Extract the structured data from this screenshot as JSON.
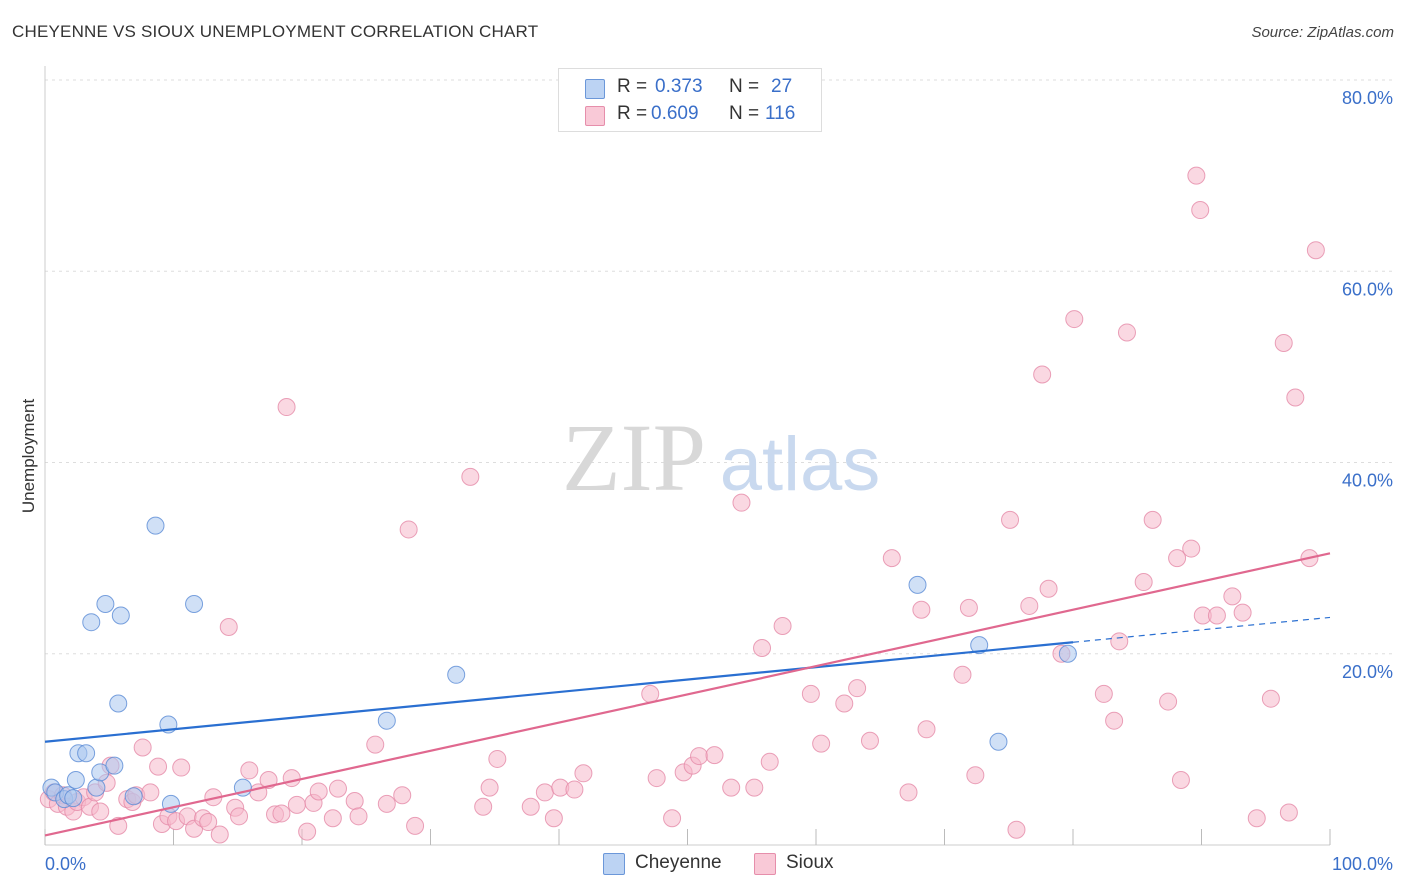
{
  "title": "CHEYENNE VS SIOUX UNEMPLOYMENT CORRELATION CHART",
  "source": "Source: ZipAtlas.com",
  "watermark": {
    "zip": "ZIP",
    "atlas": "atlas"
  },
  "legend": {
    "rows": [
      {
        "r_label": "R =",
        "r_value": "0.373",
        "n_label": "N =",
        "n_value": "27"
      },
      {
        "r_label": "R =",
        "r_value": "0.609",
        "n_label": "N =",
        "n_value": "116"
      }
    ]
  },
  "colors": {
    "cheyenne_fill": "#a9c6ee",
    "cheyenne_stroke": "#5a8bd6",
    "cheyenne_line": "#2a6fd1",
    "sioux_fill": "#f5b8cb",
    "sioux_stroke": "#e589a8",
    "sioux_line": "#e0688f",
    "tick_label": "#3a6fc9",
    "grid": "#dddddd"
  },
  "chart_data": {
    "type": "scatter",
    "title": "CHEYENNE VS SIOUX UNEMPLOYMENT CORRELATION CHART",
    "xlabel": "",
    "ylabel": "Unemployment",
    "xlim": [
      0,
      100
    ],
    "ylim": [
      0,
      80
    ],
    "x_tick_labels": [
      "0.0%",
      "100.0%"
    ],
    "y_ticks": [
      20,
      40,
      60,
      80
    ],
    "y_tick_labels": [
      "20.0%",
      "40.0%",
      "60.0%",
      "80.0%"
    ],
    "grid": true,
    "legend_position": "top-center",
    "series": [
      {
        "name": "Cheyenne",
        "r": 0.373,
        "n": 27,
        "trend": {
          "x": [
            0,
            80
          ],
          "y": [
            10.8,
            21.2
          ],
          "dashed_extension_to_x": 100,
          "dashed_end_y": 23.8
        },
        "points": [
          [
            0.5,
            6.0
          ],
          [
            0.8,
            5.5
          ],
          [
            1.5,
            4.8
          ],
          [
            1.8,
            5.2
          ],
          [
            2.2,
            4.9
          ],
          [
            2.4,
            6.8
          ],
          [
            2.6,
            9.6
          ],
          [
            3.2,
            9.6
          ],
          [
            3.6,
            23.3
          ],
          [
            4.0,
            6.0
          ],
          [
            4.3,
            7.6
          ],
          [
            4.7,
            25.2
          ],
          [
            5.4,
            8.3
          ],
          [
            5.7,
            14.8
          ],
          [
            5.9,
            24.0
          ],
          [
            6.9,
            5.1
          ],
          [
            8.6,
            33.4
          ],
          [
            9.6,
            12.6
          ],
          [
            9.8,
            4.3
          ],
          [
            11.6,
            25.2
          ],
          [
            15.4,
            6.0
          ],
          [
            26.6,
            13.0
          ],
          [
            32.0,
            17.8
          ],
          [
            67.9,
            27.2
          ],
          [
            72.7,
            20.9
          ],
          [
            74.2,
            10.8
          ],
          [
            79.6,
            20.0
          ]
        ]
      },
      {
        "name": "Sioux",
        "r": 0.609,
        "n": 116,
        "trend": {
          "x": [
            0,
            100
          ],
          "y": [
            1.0,
            30.5
          ]
        },
        "points": [
          [
            0.3,
            4.8
          ],
          [
            0.7,
            5.5
          ],
          [
            1.0,
            4.3
          ],
          [
            1.4,
            5.2
          ],
          [
            1.7,
            4.0
          ],
          [
            2.2,
            3.5
          ],
          [
            2.5,
            4.5
          ],
          [
            3.0,
            5.0
          ],
          [
            3.5,
            4.0
          ],
          [
            3.9,
            5.5
          ],
          [
            4.3,
            3.5
          ],
          [
            4.8,
            6.5
          ],
          [
            5.1,
            8.3
          ],
          [
            5.7,
            2.0
          ],
          [
            6.4,
            4.8
          ],
          [
            6.8,
            4.5
          ],
          [
            7.1,
            5.2
          ],
          [
            7.6,
            10.2
          ],
          [
            8.2,
            5.5
          ],
          [
            8.8,
            8.2
          ],
          [
            9.1,
            2.2
          ],
          [
            9.6,
            3.0
          ],
          [
            10.2,
            2.5
          ],
          [
            10.6,
            8.1
          ],
          [
            11.1,
            3.0
          ],
          [
            11.6,
            1.7
          ],
          [
            12.3,
            2.8
          ],
          [
            12.7,
            2.4
          ],
          [
            13.1,
            5.0
          ],
          [
            13.6,
            1.1
          ],
          [
            14.3,
            22.8
          ],
          [
            14.8,
            3.9
          ],
          [
            15.1,
            3.0
          ],
          [
            15.9,
            7.8
          ],
          [
            16.6,
            5.5
          ],
          [
            17.4,
            6.8
          ],
          [
            17.9,
            3.2
          ],
          [
            18.4,
            3.3
          ],
          [
            18.8,
            45.8
          ],
          [
            19.2,
            7.0
          ],
          [
            19.6,
            4.2
          ],
          [
            20.4,
            1.4
          ],
          [
            20.9,
            4.4
          ],
          [
            21.3,
            5.6
          ],
          [
            22.4,
            2.8
          ],
          [
            22.8,
            5.9
          ],
          [
            24.1,
            4.6
          ],
          [
            24.4,
            3.0
          ],
          [
            25.7,
            10.5
          ],
          [
            26.6,
            4.3
          ],
          [
            27.8,
            5.2
          ],
          [
            28.3,
            33.0
          ],
          [
            28.8,
            2.0
          ],
          [
            33.1,
            38.5
          ],
          [
            34.1,
            4.0
          ],
          [
            34.6,
            6.0
          ],
          [
            35.2,
            9.0
          ],
          [
            37.8,
            4.0
          ],
          [
            38.9,
            5.5
          ],
          [
            39.6,
            2.8
          ],
          [
            40.1,
            6.0
          ],
          [
            41.2,
            5.8
          ],
          [
            41.9,
            7.5
          ],
          [
            47.1,
            15.8
          ],
          [
            47.6,
            7.0
          ],
          [
            48.8,
            2.8
          ],
          [
            49.7,
            7.6
          ],
          [
            50.4,
            8.3
          ],
          [
            50.9,
            9.3
          ],
          [
            52.1,
            9.4
          ],
          [
            53.4,
            6.0
          ],
          [
            54.2,
            35.8
          ],
          [
            55.2,
            6.0
          ],
          [
            55.8,
            20.6
          ],
          [
            56.4,
            8.7
          ],
          [
            57.4,
            22.9
          ],
          [
            59.6,
            15.8
          ],
          [
            60.4,
            10.6
          ],
          [
            62.2,
            14.8
          ],
          [
            63.2,
            16.4
          ],
          [
            64.2,
            10.9
          ],
          [
            65.9,
            30.0
          ],
          [
            67.2,
            5.5
          ],
          [
            68.2,
            24.6
          ],
          [
            68.6,
            12.1
          ],
          [
            71.4,
            17.8
          ],
          [
            71.9,
            24.8
          ],
          [
            72.4,
            7.3
          ],
          [
            75.1,
            34.0
          ],
          [
            75.6,
            1.6
          ],
          [
            76.6,
            25.0
          ],
          [
            77.6,
            49.2
          ],
          [
            78.1,
            26.8
          ],
          [
            79.1,
            20.0
          ],
          [
            80.1,
            55.0
          ],
          [
            82.4,
            15.8
          ],
          [
            83.2,
            13.0
          ],
          [
            83.6,
            21.3
          ],
          [
            84.2,
            53.6
          ],
          [
            85.5,
            27.5
          ],
          [
            86.2,
            34.0
          ],
          [
            87.4,
            15.0
          ],
          [
            88.1,
            30.0
          ],
          [
            88.4,
            6.8
          ],
          [
            89.2,
            31.0
          ],
          [
            89.6,
            70.0
          ],
          [
            89.9,
            66.4
          ],
          [
            90.1,
            24.0
          ],
          [
            91.2,
            24.0
          ],
          [
            92.4,
            26.0
          ],
          [
            93.2,
            24.3
          ],
          [
            94.3,
            2.8
          ],
          [
            95.4,
            15.3
          ],
          [
            96.4,
            52.5
          ],
          [
            96.8,
            3.4
          ],
          [
            97.3,
            46.8
          ],
          [
            98.4,
            30.0
          ],
          [
            98.9,
            62.2
          ]
        ]
      }
    ]
  },
  "bottom_legend": [
    {
      "label": "Cheyenne"
    },
    {
      "label": "Sioux"
    }
  ]
}
